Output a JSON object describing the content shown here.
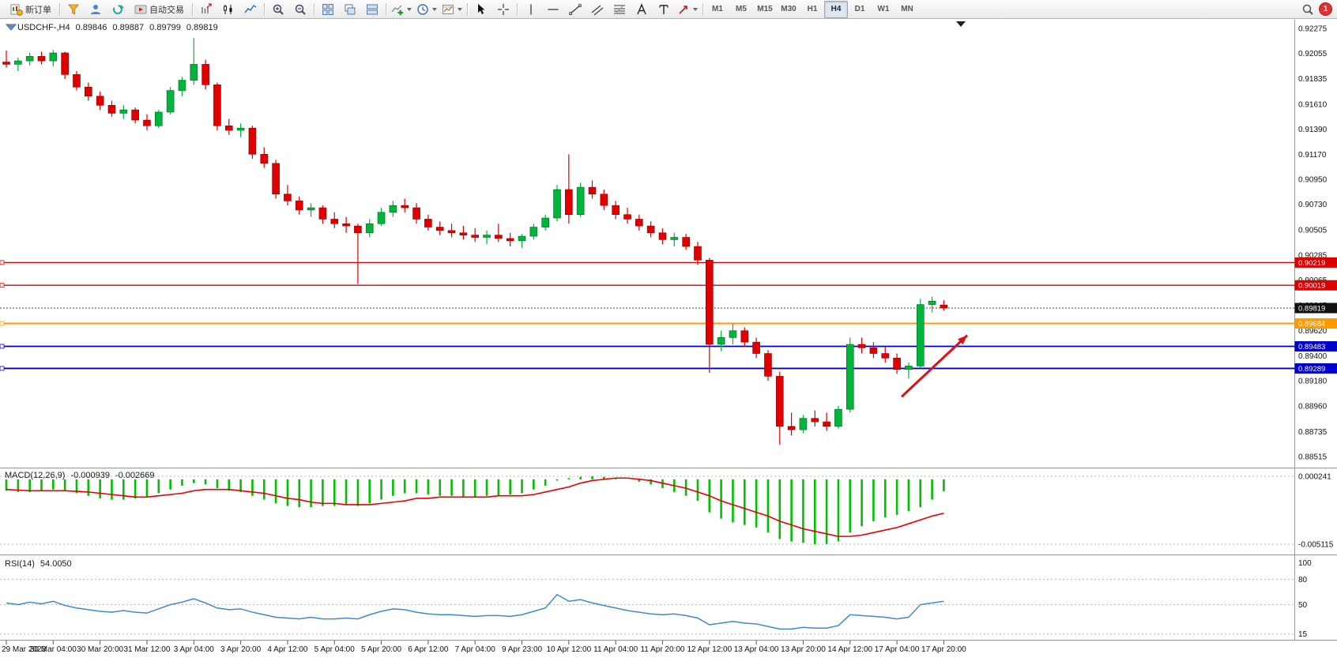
{
  "toolbar": {
    "new_order_label": "新订单",
    "autotrading_label": "自动交易",
    "timeframes": [
      "M1",
      "M5",
      "M15",
      "M30",
      "H1",
      "H4",
      "D1",
      "W1",
      "MN"
    ],
    "active_timeframe": "H4",
    "notification_badge": "1",
    "icons": [
      "new-order-icon",
      "charts-profile-icon",
      "user-profile-icon",
      "refresh-icon",
      "autotrading-icon",
      "bar-chart-icon",
      "candlestick-chart-icon",
      "line-chart-icon",
      "zoom-in-icon",
      "zoom-out-icon",
      "tile-windows-icon",
      "cascade-windows-icon",
      "arrange-windows-icon",
      "indicators-add-icon",
      "periods-icon",
      "templates-icon",
      "cursor-icon",
      "crosshair-icon",
      "vertical-line-icon",
      "horizontal-line-icon",
      "trendline-icon",
      "channel-icon",
      "fibonacci-icon",
      "text-icon",
      "text-label-icon",
      "arrows-icon",
      "search-icon"
    ]
  },
  "header": {
    "symbol_period": "USDCHF-,H4",
    "open": "0.89846",
    "high": "0.89887",
    "low": "0.89799",
    "close": "0.89819"
  },
  "indicators": {
    "macd": {
      "name": "MACD(12,26,9)",
      "value_main": "-0.000939",
      "value_signal": "-0.002669"
    },
    "rsi": {
      "name": "RSI(14)",
      "value": "54.0050"
    }
  },
  "chart_data": {
    "type": "candlestick",
    "symbol": "USDCHF",
    "period": "H4",
    "colors": {
      "up": "#00b43c",
      "up_border": "#006622",
      "down": "#e00000",
      "down_border": "#8b0000",
      "background": "#ffffff"
    },
    "price_axis": {
      "max": 0.92275,
      "min": 0.88515,
      "labels": [
        "0.92275",
        "0.92055",
        "0.91835",
        "0.91610",
        "0.91390",
        "0.91170",
        "0.90950",
        "0.90730",
        "0.90505",
        "0.90285",
        "0.90065",
        "0.89845",
        "0.89620",
        "0.89400",
        "0.89180",
        "0.88960",
        "0.88735",
        "0.88515"
      ]
    },
    "candles": [
      [
        0.9198,
        0.9208,
        0.9193,
        0.9196
      ],
      [
        0.9196,
        0.9202,
        0.919,
        0.9199
      ],
      [
        0.9199,
        0.9206,
        0.9195,
        0.9203
      ],
      [
        0.9203,
        0.9207,
        0.9196,
        0.9199
      ],
      [
        0.9199,
        0.92085,
        0.9194,
        0.9206
      ],
      [
        0.9206,
        0.9207,
        0.9183,
        0.9187
      ],
      [
        0.9187,
        0.919,
        0.9173,
        0.9176
      ],
      [
        0.9176,
        0.918,
        0.9164,
        0.9168
      ],
      [
        0.9168,
        0.9172,
        0.9156,
        0.916
      ],
      [
        0.916,
        0.9164,
        0.915,
        0.9153
      ],
      [
        0.9153,
        0.916,
        0.9148,
        0.9156
      ],
      [
        0.9156,
        0.9158,
        0.9144,
        0.9147
      ],
      [
        0.9147,
        0.9152,
        0.9138,
        0.9142
      ],
      [
        0.9142,
        0.9156,
        0.914,
        0.9154
      ],
      [
        0.9154,
        0.9176,
        0.9152,
        0.9173
      ],
      [
        0.9173,
        0.9185,
        0.9168,
        0.9182
      ],
      [
        0.9182,
        0.9219,
        0.9178,
        0.9196
      ],
      [
        0.9196,
        0.92,
        0.9174,
        0.9178
      ],
      [
        0.9178,
        0.918,
        0.9138,
        0.9142
      ],
      [
        0.9142,
        0.9148,
        0.9134,
        0.9138
      ],
      [
        0.9138,
        0.9144,
        0.9132,
        0.914
      ],
      [
        0.914,
        0.9142,
        0.9113,
        0.9117
      ],
      [
        0.9117,
        0.9123,
        0.9105,
        0.9109
      ],
      [
        0.9109,
        0.9112,
        0.9078,
        0.9082
      ],
      [
        0.9082,
        0.909,
        0.9072,
        0.9076
      ],
      [
        0.9076,
        0.908,
        0.9064,
        0.9068
      ],
      [
        0.9068,
        0.9074,
        0.9062,
        0.907
      ],
      [
        0.907,
        0.9072,
        0.9056,
        0.906
      ],
      [
        0.906,
        0.9066,
        0.9052,
        0.9056
      ],
      [
        0.9056,
        0.9062,
        0.9048,
        0.9054
      ],
      [
        0.9054,
        0.9056,
        0.9003,
        0.9048
      ],
      [
        0.9048,
        0.906,
        0.9044,
        0.9056
      ],
      [
        0.9056,
        0.907,
        0.9054,
        0.9066
      ],
      [
        0.9066,
        0.9076,
        0.9062,
        0.9072
      ],
      [
        0.9072,
        0.9078,
        0.9066,
        0.907
      ],
      [
        0.907,
        0.9074,
        0.9056,
        0.906
      ],
      [
        0.906,
        0.9064,
        0.905,
        0.9053
      ],
      [
        0.9053,
        0.9058,
        0.9046,
        0.905
      ],
      [
        0.905,
        0.9056,
        0.9044,
        0.9048
      ],
      [
        0.9048,
        0.9054,
        0.9042,
        0.9046
      ],
      [
        0.9046,
        0.9052,
        0.904,
        0.9044
      ],
      [
        0.9044,
        0.905,
        0.9038,
        0.9046
      ],
      [
        0.9046,
        0.9056,
        0.904,
        0.9043
      ],
      [
        0.9043,
        0.9048,
        0.9036,
        0.9041
      ],
      [
        0.9041,
        0.9047,
        0.9035,
        0.9045
      ],
      [
        0.9045,
        0.9056,
        0.9042,
        0.9053
      ],
      [
        0.9053,
        0.9064,
        0.905,
        0.9061
      ],
      [
        0.9061,
        0.909,
        0.9058,
        0.9086
      ],
      [
        0.9086,
        0.9117,
        0.9056,
        0.9064
      ],
      [
        0.9064,
        0.9092,
        0.9062,
        0.9088
      ],
      [
        0.9088,
        0.9094,
        0.9078,
        0.9082
      ],
      [
        0.9082,
        0.9086,
        0.9068,
        0.9072
      ],
      [
        0.9072,
        0.9076,
        0.906,
        0.9064
      ],
      [
        0.9064,
        0.907,
        0.9056,
        0.906
      ],
      [
        0.906,
        0.9064,
        0.905,
        0.9054
      ],
      [
        0.9054,
        0.9058,
        0.9044,
        0.9048
      ],
      [
        0.9048,
        0.9052,
        0.9038,
        0.9042
      ],
      [
        0.9042,
        0.9048,
        0.9036,
        0.9044
      ],
      [
        0.9044,
        0.9047,
        0.9033,
        0.9036
      ],
      [
        0.9036,
        0.904,
        0.902,
        0.9024
      ],
      [
        0.9024,
        0.9026,
        0.8925,
        0.895
      ],
      [
        0.895,
        0.8962,
        0.8944,
        0.8956
      ],
      [
        0.8956,
        0.8968,
        0.895,
        0.8962
      ],
      [
        0.8962,
        0.8965,
        0.8948,
        0.8952
      ],
      [
        0.8952,
        0.8956,
        0.8938,
        0.8942
      ],
      [
        0.8942,
        0.8945,
        0.8918,
        0.8922
      ],
      [
        0.8922,
        0.8926,
        0.8862,
        0.8878
      ],
      [
        0.8878,
        0.889,
        0.887,
        0.8875
      ],
      [
        0.8875,
        0.8888,
        0.8872,
        0.8885
      ],
      [
        0.8885,
        0.8892,
        0.8878,
        0.8882
      ],
      [
        0.8882,
        0.889,
        0.8874,
        0.8878
      ],
      [
        0.8878,
        0.8896,
        0.8876,
        0.8893
      ],
      [
        0.8893,
        0.8956,
        0.889,
        0.895
      ],
      [
        0.895,
        0.8956,
        0.8942,
        0.8947
      ],
      [
        0.8947,
        0.8952,
        0.8938,
        0.8942
      ],
      [
        0.8942,
        0.8948,
        0.8934,
        0.8938
      ],
      [
        0.8938,
        0.8942,
        0.8924,
        0.8928
      ],
      [
        0.8928,
        0.8934,
        0.892,
        0.8931
      ],
      [
        0.8931,
        0.899,
        0.8929,
        0.8985
      ],
      [
        0.8985,
        0.8992,
        0.8978,
        0.8988
      ],
      [
        0.89846,
        0.89887,
        0.89799,
        0.89819
      ]
    ],
    "hlines": [
      {
        "price": 0.90219,
        "color": "#dd0000",
        "style": "solid",
        "width": 1.3
      },
      {
        "price": 0.90019,
        "color": "#dd0000",
        "style": "solid",
        "width": 1.3
      },
      {
        "price": 0.89819,
        "color": "#444444",
        "style": "dotted",
        "width": 1
      },
      {
        "price": 0.89684,
        "color": "#ff9900",
        "style": "solid",
        "width": 2
      },
      {
        "price": 0.89483,
        "color": "#0000cc",
        "style": "solid",
        "width": 1.8
      },
      {
        "price": 0.89289,
        "color": "#0000cc",
        "style": "solid",
        "width": 1.8
      }
    ],
    "price_tags": [
      {
        "value": "0.90219",
        "price": 0.90219,
        "color": "#dd0000"
      },
      {
        "value": "0.90019",
        "price": 0.90019,
        "color": "#dd0000"
      },
      {
        "value": "0.89819",
        "price": 0.89819,
        "color": "#111111"
      },
      {
        "value": "0.89684",
        "price": 0.89684,
        "color": "#ff9900"
      },
      {
        "value": "0.89483",
        "price": 0.89483,
        "color": "#0000cc"
      },
      {
        "value": "0.89289",
        "price": 0.89289,
        "color": "#0000cc"
      }
    ],
    "macd": {
      "name": "MACD(12,26,9)",
      "range": {
        "max": 0.0008,
        "min": -0.0058
      },
      "axis_labels": [
        {
          "value": 0.000241,
          "label": "0.000241"
        },
        {
          "value": -0.005115,
          "label": "-0.005115"
        }
      ],
      "colors": {
        "histogram": "#00c000",
        "signal": "#e80000"
      },
      "histogram": [
        -0.0009,
        -0.001,
        -0.001,
        -0.0009,
        -0.0008,
        -0.0009,
        -0.0011,
        -0.0013,
        -0.0015,
        -0.0016,
        -0.0016,
        -0.0015,
        -0.0014,
        -0.0011,
        -0.0008,
        -0.0005,
        -0.0003,
        -0.0004,
        -0.0007,
        -0.0009,
        -0.001,
        -0.0013,
        -0.0016,
        -0.0019,
        -0.0021,
        -0.0022,
        -0.0022,
        -0.0021,
        -0.0021,
        -0.002,
        -0.0021,
        -0.0019,
        -0.0016,
        -0.0013,
        -0.0011,
        -0.0011,
        -0.0012,
        -0.0013,
        -0.0013,
        -0.0014,
        -0.0014,
        -0.0013,
        -0.0013,
        -0.0012,
        -0.0011,
        -0.0008,
        -0.0005,
        -0.0001,
        0.0001,
        0.0002,
        0.000241,
        0.0002,
        0.0001,
        0.0,
        -0.0002,
        -0.0004,
        -0.0007,
        -0.001,
        -0.0013,
        -0.0017,
        -0.0026,
        -0.0031,
        -0.0034,
        -0.0036,
        -0.0038,
        -0.0042,
        -0.0047,
        -0.0049,
        -0.005,
        -0.005115,
        -0.0051,
        -0.0049,
        -0.0042,
        -0.0037,
        -0.0033,
        -0.003,
        -0.0028,
        -0.0025,
        -0.0022,
        -0.0016,
        -0.000939
      ],
      "signal": [
        -0.0008,
        -0.00085,
        -0.0009,
        -0.0009,
        -0.0009,
        -0.0009,
        -0.00095,
        -0.001,
        -0.0011,
        -0.0012,
        -0.0013,
        -0.0014,
        -0.0014,
        -0.0013,
        -0.0012,
        -0.0011,
        -0.0009,
        -0.0008,
        -0.0008,
        -0.0008,
        -0.0009,
        -0.001,
        -0.0011,
        -0.0013,
        -0.0015,
        -0.0016,
        -0.0018,
        -0.0019,
        -0.0019,
        -0.002,
        -0.002,
        -0.002,
        -0.0019,
        -0.0018,
        -0.0017,
        -0.0015,
        -0.0015,
        -0.0014,
        -0.0014,
        -0.0014,
        -0.0014,
        -0.0014,
        -0.0013,
        -0.0013,
        -0.0013,
        -0.0012,
        -0.001,
        -0.0008,
        -0.0006,
        -0.0003,
        -0.0001,
        0.0,
        0.0001,
        0.0001,
        0.0,
        -0.0001,
        -0.0003,
        -0.0005,
        -0.0007,
        -0.001,
        -0.0013,
        -0.0017,
        -0.002,
        -0.0023,
        -0.0026,
        -0.0029,
        -0.0033,
        -0.0036,
        -0.0039,
        -0.0041,
        -0.0043,
        -0.0045,
        -0.0045,
        -0.0044,
        -0.0042,
        -0.004,
        -0.0038,
        -0.0035,
        -0.0032,
        -0.0029,
        -0.002669
      ]
    },
    "rsi": {
      "name": "RSI(14)",
      "range": {
        "max": 107,
        "min": 10
      },
      "levels": [
        80,
        50,
        15
      ],
      "axis_labels": [
        {
          "value": 100,
          "label": "100"
        },
        {
          "value": 80,
          "label": "80"
        },
        {
          "value": 50,
          "label": "50"
        },
        {
          "value": 15,
          "label": "15"
        }
      ],
      "color": "#4288cc",
      "values": [
        52,
        50,
        53,
        51,
        54,
        49,
        46,
        44,
        42,
        41,
        43,
        41,
        40,
        45,
        50,
        53,
        57,
        52,
        46,
        44,
        45,
        41,
        38,
        35,
        34,
        33,
        35,
        33,
        33,
        34,
        33,
        38,
        42,
        45,
        44,
        41,
        39,
        38,
        38,
        37,
        36,
        37,
        37,
        36,
        38,
        42,
        46,
        62,
        54,
        56,
        52,
        49,
        46,
        43,
        41,
        39,
        38,
        39,
        37,
        34,
        26,
        28,
        30,
        28,
        27,
        24,
        21,
        21,
        23,
        22,
        22,
        25,
        38,
        37,
        36,
        35,
        33,
        35,
        50,
        52,
        54.005
      ]
    },
    "time_axis": [
      "29 Mar 2023",
      "30 Mar 04:00",
      "30 Mar 20:00",
      "31 Mar 12:00",
      "3 Apr 04:00",
      "3 Apr 20:00",
      "4 Apr 12:00",
      "5 Apr 04:00",
      "5 Apr 20:00",
      "6 Apr 12:00",
      "7 Apr 04:00",
      "9 Apr 23:00",
      "10 Apr 12:00",
      "11 Apr 04:00",
      "11 Apr 20:00",
      "12 Apr 12:00",
      "13 Apr 04:00",
      "13 Apr 20:00",
      "14 Apr 12:00",
      "17 Apr 04:00",
      "17 Apr 20:00"
    ],
    "arrow": {
      "color": "#dd1111",
      "from": {
        "bar": 76.4,
        "price": 0.8904
      },
      "to": {
        "bar": 82.0,
        "price": 0.8958
      }
    }
  }
}
